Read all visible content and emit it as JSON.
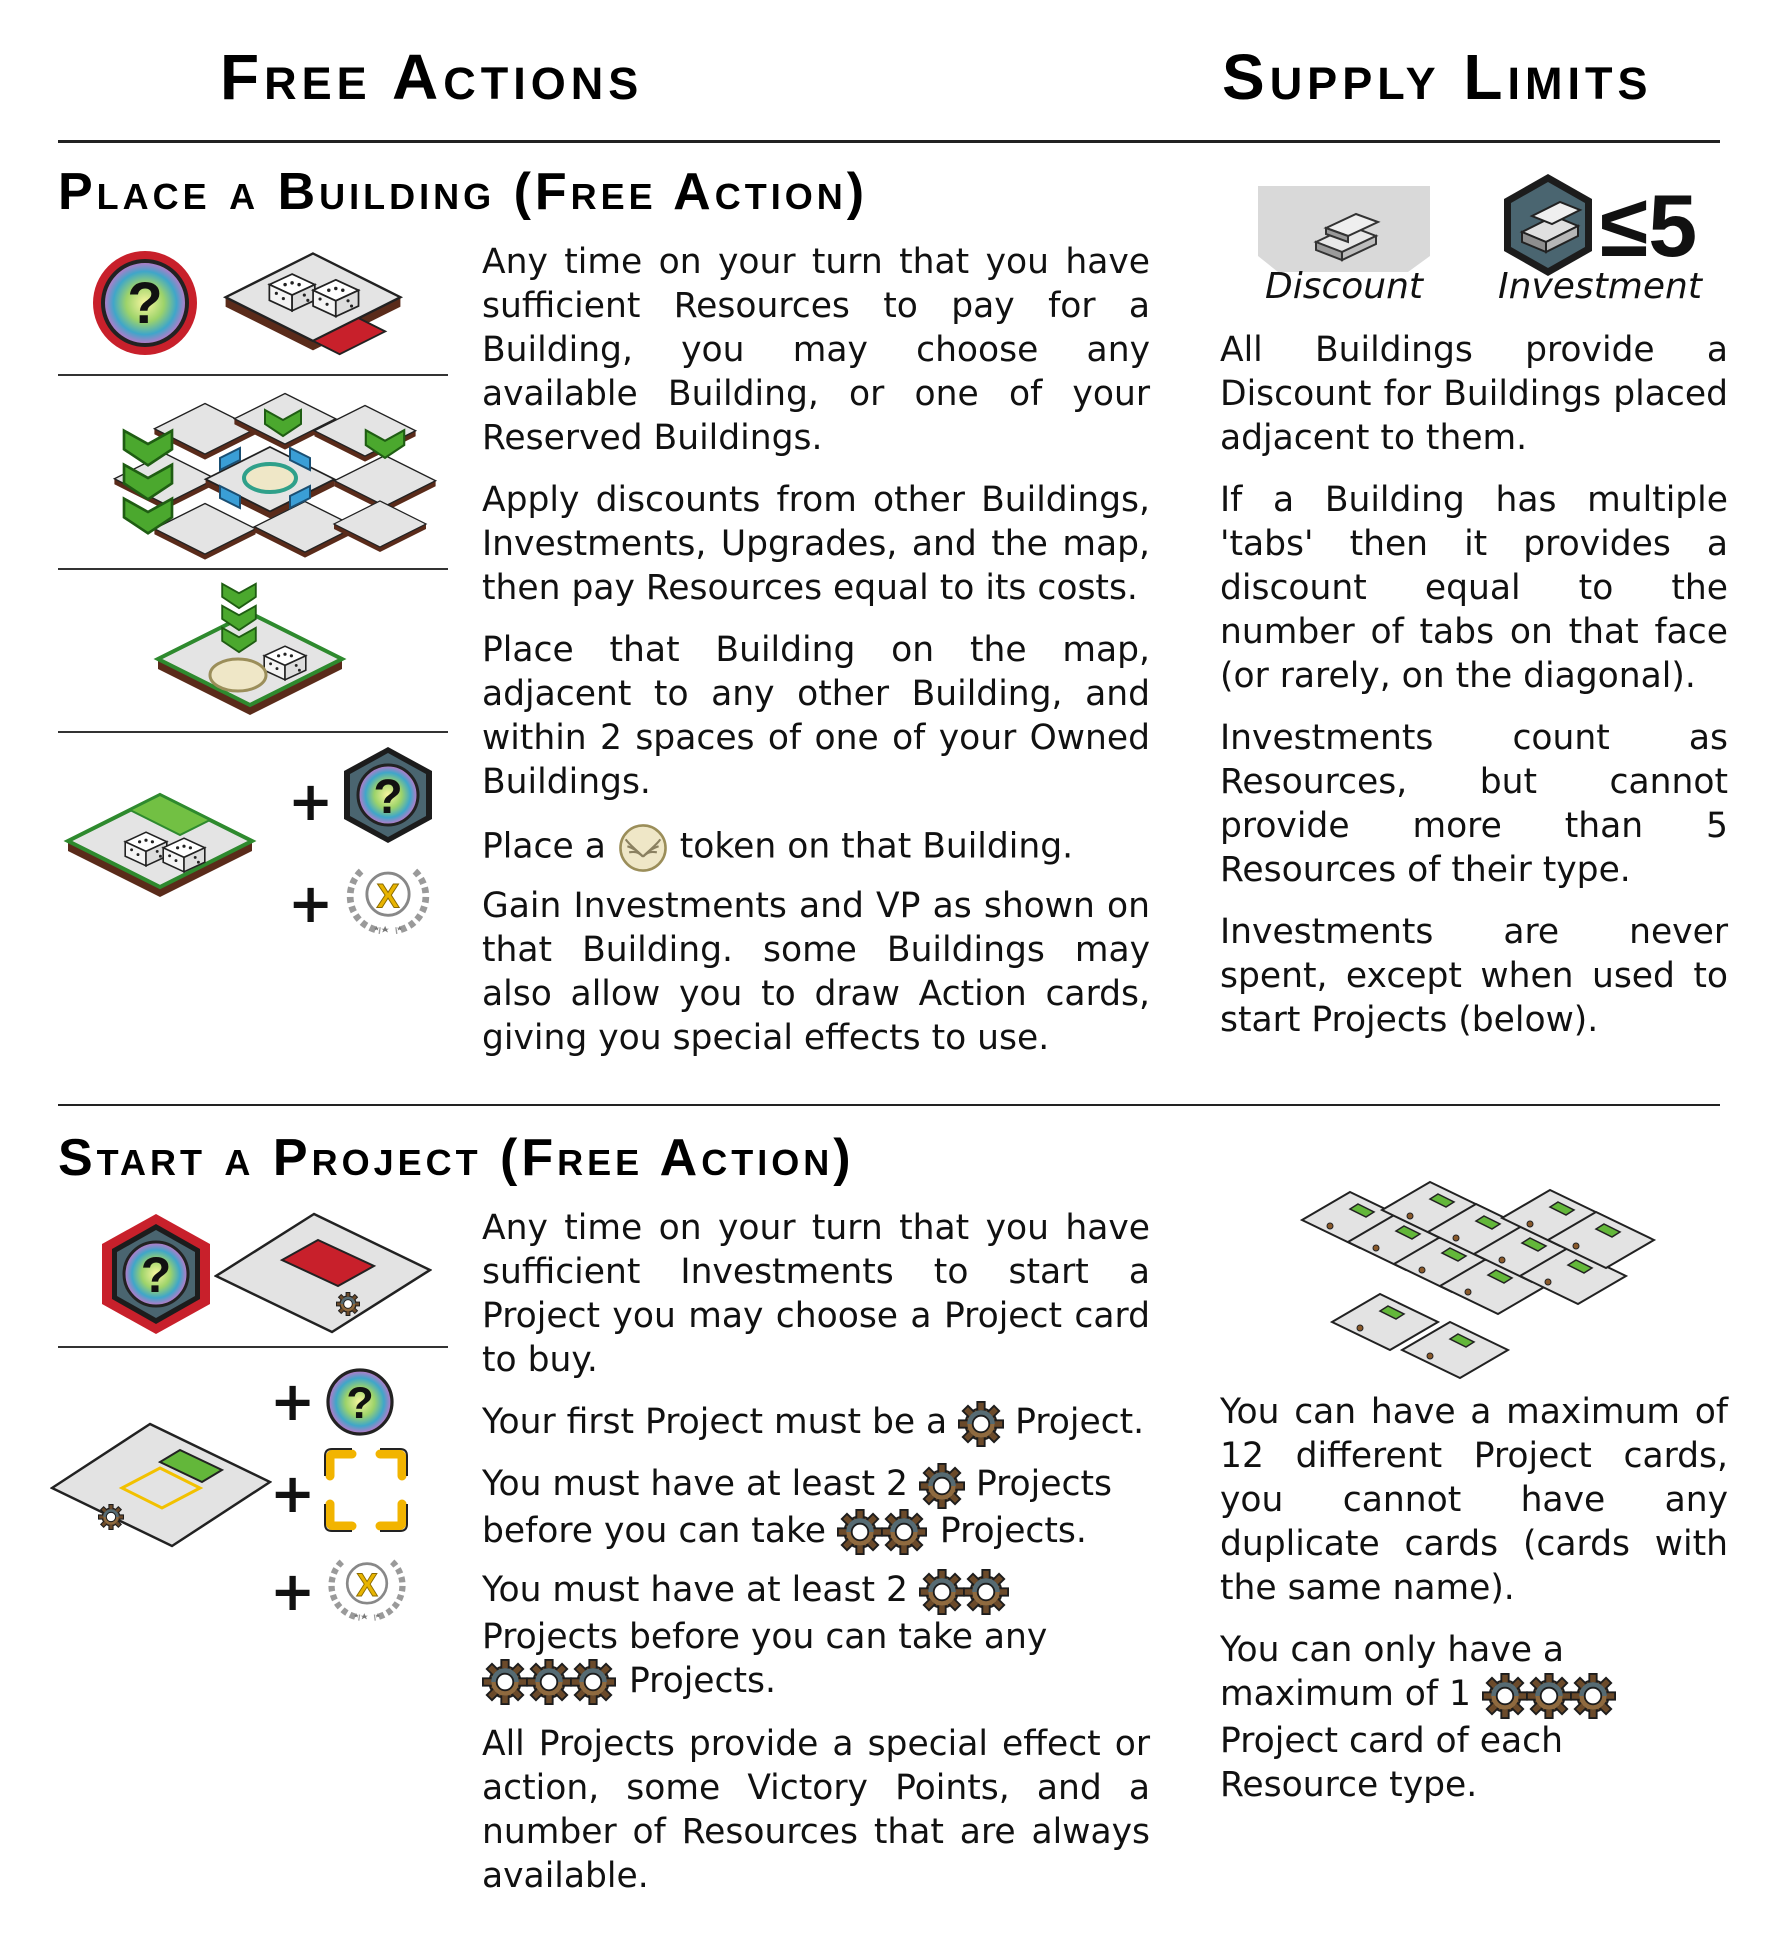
{
  "headings": {
    "free_actions": "Free Actions",
    "supply_limits": "Supply Limits",
    "place_building": "Place a Building (Free Action)",
    "start_project": "Start a Project (Free Action)"
  },
  "place_building": {
    "p1": "Any time on your turn that you have sufficient Resources to pay for a Building, you may choose any available Building, or one of your Reserved Buildings.",
    "p2": "Apply discounts from other Buildings, Investments, Upgrades, and the map, then pay Resources equal to its costs.",
    "p3": "Place that Building on the map, adjacent to any other Building, and within 2 spaces of one of your Owned Buildings.",
    "p4_a": "Place a",
    "p4_b": "token on that Building.",
    "p5": "Gain Investments and VP as shown on that Building. some Buildings may also allow you to draw Action cards, giving you special effects to use.",
    "plus": "+",
    "q": "?",
    "x": "X"
  },
  "supply": {
    "discount_label": "Discount",
    "investment_label": "Investment",
    "limit": "≤5",
    "p1": "All Buildings provide a Discount for Buildings placed adjacent to them.",
    "p2": "If a Building has multiple 'tabs' then it provides a discount equal to the number of tabs on that face (or rarely, on the diagonal).",
    "p3": "Investments count as Resources, but cannot provide more than 5 Resources of their type.",
    "p4": "Investments are never spent, except when used to start Projects (below)."
  },
  "start_project": {
    "p1": "Any time on your turn that you have sufficient Investments to start a Project you may choose a Project card to buy.",
    "p2_a": "Your first Project must be a",
    "p2_b": "Project.",
    "p3_a": "You must have at least 2",
    "p3_b": "Projects before you can take",
    "p3_c": "Projects.",
    "p4_a": "You must have at least 2",
    "p4_b": "Projects before you can take any",
    "p4_c": "Projects.",
    "p5": "All Projects provide a special effect or action, some Victory Points, and a number of Resources that are always available."
  },
  "project_limits": {
    "p1": "You can have a maximum of 12 different Project cards, you cannot have any duplicate cards (cards with the same name).",
    "p2_a": "You can only have a maximum of 1",
    "p2_b": "Project card of each Resource type."
  },
  "colors": {
    "accent_red": "#c8202b",
    "green": "#5fb832",
    "gold": "#f2c100",
    "gear": "#8a5a2b"
  },
  "icons": [
    "question-coin-icon",
    "question-hex-icon",
    "gear-icon",
    "laurel-x-icon",
    "building-tile-icon",
    "project-card-icon",
    "wings-token-icon",
    "ingot-icon"
  ]
}
